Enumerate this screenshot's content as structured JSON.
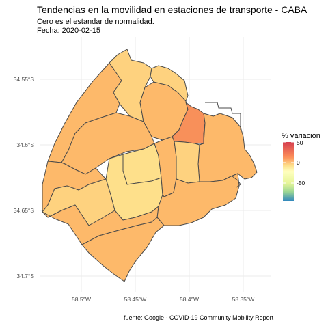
{
  "title": "Tendencias en la movilidad en estaciones de transporte - CABA",
  "subtitle_line1": "Cero es el estandar de normalidad.",
  "subtitle_line2": "Fecha: 2020-02-15",
  "caption": "fuente: Google - COVID-19 Community Mobility Report",
  "legend": {
    "title": "% variación",
    "ticks": [
      "50",
      "0",
      "-50"
    ]
  },
  "axes": {
    "y_ticks": [
      "34.55°S",
      "34.6°S",
      "34.65°S",
      "34.7°S"
    ],
    "x_ticks": [
      "58.5°W",
      "58.45°W",
      "58.4°W",
      "58.35°W"
    ]
  },
  "colors": {
    "scale_high": "#d53e4f",
    "scale_mid": "#fee08b",
    "scale_zero": "#ffffbf",
    "scale_low": "#3288bd",
    "comuna_default": "#fdb96a",
    "comuna_light": "#fed27f",
    "comuna_lighter": "#fee08b",
    "comuna_hot": "#f8905a",
    "border": "#4a4a4a",
    "grid": "#ebebeb"
  }
}
